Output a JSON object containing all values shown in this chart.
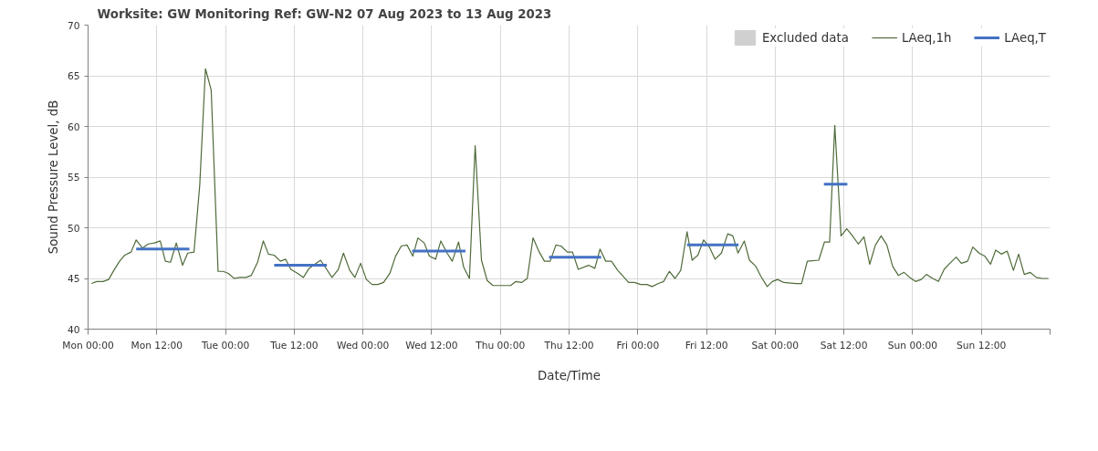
{
  "chart_data": {
    "type": "line",
    "title": "Worksite: GW   Monitoring Ref: GW-N2     07 Aug 2023 to 13 Aug 2023",
    "xlabel": "Date/Time",
    "ylabel": "Sound Pressure Level, dB",
    "xlim": [
      "2023-08-07T00:00",
      "2023-08-14T00:00"
    ],
    "xticks": [
      {
        "value": "2023-08-07T00:00",
        "label": "Mon 00:00"
      },
      {
        "value": "2023-08-07T12:00",
        "label": "Mon 12:00"
      },
      {
        "value": "2023-08-08T00:00",
        "label": "Tue 00:00"
      },
      {
        "value": "2023-08-08T12:00",
        "label": "Tue 12:00"
      },
      {
        "value": "2023-08-09T00:00",
        "label": "Wed 00:00"
      },
      {
        "value": "2023-08-09T12:00",
        "label": "Wed 12:00"
      },
      {
        "value": "2023-08-10T00:00",
        "label": "Thu 00:00"
      },
      {
        "value": "2023-08-10T12:00",
        "label": "Thu 12:00"
      },
      {
        "value": "2023-08-11T00:00",
        "label": "Fri 00:00"
      },
      {
        "value": "2023-08-11T12:00",
        "label": "Fri 12:00"
      },
      {
        "value": "2023-08-12T00:00",
        "label": "Sat 00:00"
      },
      {
        "value": "2023-08-12T12:00",
        "label": "Sat 12:00"
      },
      {
        "value": "2023-08-13T00:00",
        "label": "Sun 00:00"
      },
      {
        "value": "2023-08-13T12:00",
        "label": "Sun 12:00"
      },
      {
        "value": "2023-08-14T00:00",
        "label": null
      }
    ],
    "ylim": [
      40,
      70
    ],
    "yticks": [
      40,
      45,
      50,
      55,
      60,
      65,
      70
    ],
    "grid": true,
    "legend": "top right",
    "marker": "none",
    "line_style": "solid",
    "series": [
      {
        "name": "Excluded data",
        "type": "area",
        "color": "#d0d0d0"
      },
      {
        "name": "LAeq,1h",
        "color": "#4f6b3a",
        "x": [
          "2023-08-07T00:36",
          "2023-08-07T01:30",
          "2023-08-07T02:36",
          "2023-08-07T03:36",
          "2023-08-07T04:30",
          "2023-08-07T05:30",
          "2023-08-07T06:24",
          "2023-08-07T07:30",
          "2023-08-07T08:24",
          "2023-08-07T09:30",
          "2023-08-07T10:30",
          "2023-08-07T11:36",
          "2023-08-07T12:36",
          "2023-08-07T13:30",
          "2023-08-07T14:24",
          "2023-08-07T15:24",
          "2023-08-07T16:30",
          "2023-08-07T17:24",
          "2023-08-07T18:30",
          "2023-08-07T19:30",
          "2023-08-07T20:30",
          "2023-08-07T21:30",
          "2023-08-07T22:42",
          "2023-08-07T23:36",
          "2023-08-08T00:30",
          "2023-08-08T01:30",
          "2023-08-08T02:30",
          "2023-08-08T03:36",
          "2023-08-08T04:30",
          "2023-08-08T05:36",
          "2023-08-08T06:36",
          "2023-08-08T07:30",
          "2023-08-08T08:30",
          "2023-08-08T09:36",
          "2023-08-08T10:30",
          "2023-08-08T11:24",
          "2023-08-08T12:36",
          "2023-08-08T13:36",
          "2023-08-08T14:36",
          "2023-08-08T16:36",
          "2023-08-08T18:36",
          "2023-08-08T19:42",
          "2023-08-08T20:36",
          "2023-08-08T21:42",
          "2023-08-08T22:36",
          "2023-08-08T23:36",
          "2023-08-09T00:36",
          "2023-08-09T01:36",
          "2023-08-09T02:36",
          "2023-08-09T03:36",
          "2023-08-09T04:42",
          "2023-08-09T05:42",
          "2023-08-09T06:42",
          "2023-08-09T07:42",
          "2023-08-09T08:42",
          "2023-08-09T09:36",
          "2023-08-09T10:42",
          "2023-08-09T11:36",
          "2023-08-09T12:42",
          "2023-08-09T13:36",
          "2023-08-09T14:42",
          "2023-08-09T15:36",
          "2023-08-09T16:42",
          "2023-08-09T17:36",
          "2023-08-09T18:36",
          "2023-08-09T19:36",
          "2023-08-09T20:42",
          "2023-08-09T21:42",
          "2023-08-09T22:42",
          "2023-08-09T23:42",
          "2023-08-10T00:42",
          "2023-08-10T01:48",
          "2023-08-10T02:42",
          "2023-08-10T03:42",
          "2023-08-10T04:42",
          "2023-08-10T05:42",
          "2023-08-10T06:48",
          "2023-08-10T07:42",
          "2023-08-10T08:42",
          "2023-08-10T09:42",
          "2023-08-10T10:36",
          "2023-08-10T11:42",
          "2023-08-10T12:36",
          "2023-08-10T13:36",
          "2023-08-10T15:24",
          "2023-08-10T16:30",
          "2023-08-10T17:24",
          "2023-08-10T18:24",
          "2023-08-10T19:24",
          "2023-08-10T20:30",
          "2023-08-10T22:24",
          "2023-08-10T23:24",
          "2023-08-11T00:30",
          "2023-08-11T01:36",
          "2023-08-11T02:30",
          "2023-08-11T03:36",
          "2023-08-11T04:30",
          "2023-08-11T05:30",
          "2023-08-11T06:30",
          "2023-08-11T07:30",
          "2023-08-11T08:36",
          "2023-08-11T09:30",
          "2023-08-11T10:30",
          "2023-08-11T11:30",
          "2023-08-11T12:30",
          "2023-08-11T13:30",
          "2023-08-11T14:36",
          "2023-08-11T15:42",
          "2023-08-11T16:36",
          "2023-08-11T17:30",
          "2023-08-11T18:36",
          "2023-08-11T19:30",
          "2023-08-11T20:36",
          "2023-08-11T21:30",
          "2023-08-11T22:36",
          "2023-08-11T23:30",
          "2023-08-12T00:24",
          "2023-08-12T01:30",
          "2023-08-12T03:36",
          "2023-08-12T04:36",
          "2023-08-12T05:36",
          "2023-08-12T07:36",
          "2023-08-12T08:36",
          "2023-08-12T09:30",
          "2023-08-12T10:24",
          "2023-08-12T11:30",
          "2023-08-12T12:30",
          "2023-08-12T13:30",
          "2023-08-12T14:30",
          "2023-08-12T15:30",
          "2023-08-12T16:30",
          "2023-08-12T17:30",
          "2023-08-12T18:30",
          "2023-08-12T19:30",
          "2023-08-12T20:30",
          "2023-08-12T21:30",
          "2023-08-12T22:30",
          "2023-08-12T23:30",
          "2023-08-13T00:30",
          "2023-08-13T01:30",
          "2023-08-13T02:24",
          "2023-08-13T03:30",
          "2023-08-13T04:30",
          "2023-08-13T05:30",
          "2023-08-13T06:30",
          "2023-08-13T07:36",
          "2023-08-13T08:30",
          "2023-08-13T09:36",
          "2023-08-13T10:30",
          "2023-08-13T11:36",
          "2023-08-13T12:36",
          "2023-08-13T13:36",
          "2023-08-13T14:30",
          "2023-08-13T15:30",
          "2023-08-13T16:30",
          "2023-08-13T17:36",
          "2023-08-13T18:30",
          "2023-08-13T19:30",
          "2023-08-13T20:30",
          "2023-08-13T21:36",
          "2023-08-13T22:36",
          "2023-08-13T23:42"
        ],
        "values": [
          44.5,
          44.7,
          44.7,
          44.9,
          45.8,
          46.7,
          47.3,
          47.6,
          48.8,
          48.0,
          48.4,
          48.5,
          48.7,
          46.7,
          46.6,
          48.5,
          46.3,
          47.5,
          47.6,
          54.2,
          65.7,
          63.6,
          45.7,
          45.7,
          45.5,
          45.0,
          45.1,
          45.1,
          45.3,
          46.6,
          48.7,
          47.4,
          47.3,
          46.7,
          46.9,
          45.9,
          45.5,
          45.1,
          46.0,
          46.8,
          45.1,
          45.9,
          47.5,
          45.8,
          45.1,
          46.5,
          44.9,
          44.4,
          44.4,
          44.6,
          45.5,
          47.2,
          48.2,
          48.3,
          47.2,
          49.0,
          48.5,
          47.2,
          46.9,
          48.7,
          47.5,
          46.7,
          48.6,
          46.1,
          45.0,
          58.1,
          46.8,
          44.8,
          44.3,
          44.3,
          44.3,
          44.3,
          44.7,
          44.6,
          45.0,
          49.0,
          47.6,
          46.7,
          46.7,
          48.3,
          48.2,
          47.6,
          47.6,
          45.9,
          46.3,
          46.0,
          47.9,
          46.7,
          46.7,
          45.8,
          44.6,
          44.6,
          44.4,
          44.4,
          44.2,
          44.5,
          44.7,
          45.7,
          45.0,
          45.8,
          49.6,
          46.8,
          47.3,
          48.8,
          48.1,
          46.9,
          47.5,
          49.4,
          49.2,
          47.5,
          48.7,
          46.8,
          46.2,
          45.2,
          44.2,
          44.7,
          44.9,
          44.6,
          44.5,
          44.5,
          46.7,
          46.8,
          48.6,
          48.6,
          60.1,
          49.2,
          49.9,
          49.2,
          48.4,
          49.1,
          46.4,
          48.3,
          49.2,
          48.3,
          46.2,
          45.3,
          45.6,
          45.1,
          44.7,
          44.9,
          45.4,
          45.0,
          44.7,
          45.9,
          46.5,
          47.1,
          46.5,
          46.7,
          48.1,
          47.5,
          47.2,
          46.4,
          47.8,
          47.4,
          47.7,
          45.8,
          47.4,
          45.4,
          45.6,
          45.1,
          45.0,
          45.0
        ]
      },
      {
        "name": "LAeq,T",
        "color": "#4472c4",
        "x": [
          "2023-08-07T08:24",
          "2023-08-07T17:42",
          "2023-08-07T20:00",
          "2023-08-08T08:30",
          "2023-08-08T17:42",
          "2023-08-09T02:00",
          "2023-08-09T08:36",
          "2023-08-09T17:54",
          "2023-08-09T22:00",
          "2023-08-10T08:30",
          "2023-08-10T17:36",
          "2023-08-10T23:00",
          "2023-08-11T08:36",
          "2023-08-11T17:36",
          "2023-08-12T00:00",
          "2023-08-12T08:30",
          "2023-08-12T12:36"
        ],
        "values": [
          47.9,
          47.9,
          null,
          46.3,
          46.3,
          null,
          47.7,
          47.7,
          null,
          47.1,
          47.1,
          null,
          48.3,
          48.3,
          null,
          54.3,
          54.3
        ]
      }
    ]
  }
}
